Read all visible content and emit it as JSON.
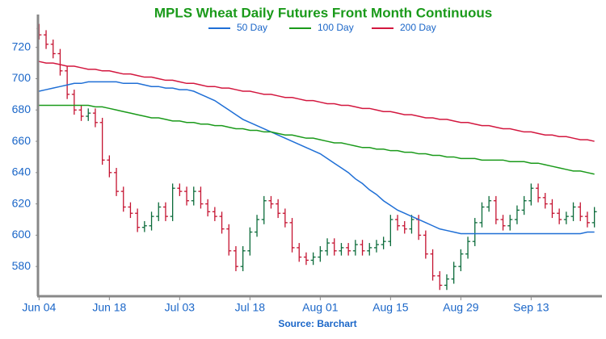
{
  "chart_data": {
    "type": "ohlc",
    "title": "MPLS Wheat Daily Futures Front Month Continuous",
    "source": "Source: Barchart",
    "categories": [
      "Jun 04",
      null,
      null,
      null,
      null,
      null,
      null,
      null,
      null,
      null,
      "Jun 18",
      null,
      null,
      null,
      null,
      null,
      null,
      null,
      null,
      null,
      "Jul 03",
      null,
      null,
      null,
      null,
      null,
      null,
      null,
      null,
      null,
      "Jul 18",
      null,
      null,
      null,
      null,
      null,
      null,
      null,
      null,
      null,
      "Aug 01",
      null,
      null,
      null,
      null,
      null,
      null,
      null,
      null,
      null,
      "Aug 15",
      null,
      null,
      null,
      null,
      null,
      null,
      null,
      null,
      null,
      "Aug 29",
      null,
      null,
      null,
      null,
      null,
      null,
      null,
      null,
      null,
      "Sep 13",
      null,
      null,
      null,
      null,
      null,
      null,
      null,
      null,
      null
    ],
    "open": [
      732,
      728,
      722,
      716,
      705,
      690,
      680,
      676,
      678,
      672,
      648,
      640,
      628,
      618,
      614,
      605,
      606,
      612,
      618,
      612,
      630,
      628,
      622,
      628,
      620,
      615,
      612,
      604,
      590,
      580,
      590,
      602,
      610,
      622,
      620,
      614,
      608,
      592,
      586,
      584,
      586,
      590,
      595,
      590,
      592,
      590,
      594,
      590,
      592,
      594,
      596,
      610,
      606,
      604,
      610,
      600,
      588,
      574,
      568,
      572,
      580,
      588,
      596,
      608,
      618,
      622,
      610,
      606,
      610,
      616,
      622,
      630,
      624,
      620,
      614,
      610,
      612,
      618,
      612,
      608
    ],
    "high": [
      735,
      731,
      725,
      719,
      708,
      693,
      683,
      681,
      681,
      675,
      651,
      643,
      631,
      621,
      617,
      609,
      615,
      621,
      621,
      633,
      633,
      631,
      631,
      631,
      623,
      618,
      615,
      607,
      593,
      593,
      605,
      613,
      625,
      625,
      623,
      617,
      611,
      595,
      589,
      589,
      593,
      598,
      598,
      595,
      595,
      597,
      597,
      595,
      597,
      599,
      613,
      613,
      609,
      613,
      613,
      603,
      591,
      577,
      575,
      583,
      591,
      599,
      611,
      621,
      625,
      625,
      613,
      613,
      619,
      625,
      633,
      633,
      627,
      623,
      617,
      615,
      621,
      621,
      615,
      618
    ],
    "low": [
      725,
      719,
      713,
      702,
      687,
      677,
      673,
      673,
      669,
      645,
      637,
      625,
      615,
      611,
      602,
      602,
      603,
      609,
      609,
      609,
      625,
      619,
      619,
      617,
      612,
      609,
      601,
      587,
      577,
      577,
      587,
      599,
      607,
      617,
      611,
      605,
      589,
      583,
      581,
      581,
      583,
      587,
      587,
      587,
      587,
      587,
      587,
      587,
      589,
      591,
      593,
      603,
      601,
      601,
      597,
      585,
      571,
      565,
      565,
      569,
      577,
      585,
      593,
      605,
      615,
      607,
      603,
      603,
      607,
      613,
      619,
      621,
      617,
      611,
      607,
      607,
      609,
      609,
      605,
      605
    ],
    "close": [
      728,
      722,
      716,
      705,
      690,
      680,
      676,
      678,
      672,
      648,
      640,
      628,
      618,
      614,
      605,
      606,
      612,
      618,
      612,
      630,
      628,
      622,
      628,
      620,
      615,
      612,
      604,
      590,
      580,
      590,
      602,
      610,
      622,
      620,
      614,
      608,
      592,
      586,
      584,
      586,
      590,
      595,
      590,
      592,
      590,
      594,
      590,
      592,
      594,
      596,
      610,
      606,
      604,
      610,
      600,
      588,
      574,
      568,
      572,
      580,
      588,
      596,
      608,
      618,
      622,
      610,
      606,
      610,
      616,
      622,
      630,
      624,
      620,
      614,
      610,
      612,
      618,
      612,
      608,
      615
    ],
    "up_color": "#0b6b3a",
    "down_color": "#c41230",
    "series": [
      {
        "name": "50 Day",
        "color": "#1f6fd6",
        "values": [
          692,
          693,
          694,
          695,
          696,
          697,
          697,
          698,
          698,
          698,
          698,
          698,
          697,
          697,
          697,
          696,
          695,
          695,
          694,
          694,
          693,
          693,
          692,
          690,
          688,
          686,
          683,
          680,
          677,
          674,
          672,
          670,
          668,
          666,
          664,
          662,
          660,
          658,
          656,
          654,
          652,
          649,
          646,
          643,
          640,
          636,
          633,
          629,
          626,
          622,
          619,
          616,
          614,
          612,
          610,
          608,
          606,
          604,
          603,
          602,
          601,
          601,
          601,
          601,
          601,
          601,
          601,
          601,
          601,
          601,
          601,
          601,
          601,
          601,
          601,
          601,
          601,
          601,
          602,
          602
        ]
      },
      {
        "name": "100 Day",
        "color": "#1a9a1a",
        "values": [
          683,
          683,
          683,
          683,
          683,
          683,
          683,
          683,
          682,
          682,
          681,
          680,
          679,
          678,
          677,
          676,
          675,
          675,
          674,
          673,
          673,
          672,
          672,
          671,
          671,
          670,
          670,
          669,
          668,
          668,
          667,
          667,
          666,
          666,
          665,
          664,
          664,
          663,
          662,
          662,
          661,
          660,
          659,
          659,
          658,
          657,
          656,
          656,
          655,
          655,
          654,
          654,
          653,
          653,
          652,
          652,
          651,
          651,
          650,
          650,
          649,
          649,
          649,
          648,
          648,
          648,
          648,
          647,
          647,
          647,
          646,
          646,
          645,
          644,
          643,
          642,
          641,
          641,
          640,
          639
        ]
      },
      {
        "name": "200 Day",
        "color": "#d3173f",
        "values": [
          711,
          710,
          710,
          709,
          708,
          708,
          707,
          706,
          706,
          705,
          705,
          704,
          703,
          703,
          702,
          701,
          701,
          700,
          699,
          699,
          698,
          697,
          697,
          696,
          695,
          695,
          694,
          694,
          693,
          692,
          692,
          691,
          690,
          690,
          689,
          688,
          688,
          687,
          686,
          686,
          685,
          684,
          684,
          683,
          683,
          682,
          681,
          681,
          680,
          679,
          679,
          678,
          677,
          677,
          676,
          675,
          675,
          674,
          674,
          673,
          672,
          672,
          671,
          670,
          670,
          669,
          668,
          668,
          667,
          666,
          666,
          665,
          664,
          664,
          663,
          663,
          662,
          661,
          661,
          660
        ]
      }
    ],
    "ylim": [
      561,
      741
    ],
    "yticks": [
      580,
      600,
      620,
      640,
      660,
      680,
      700,
      720
    ]
  }
}
